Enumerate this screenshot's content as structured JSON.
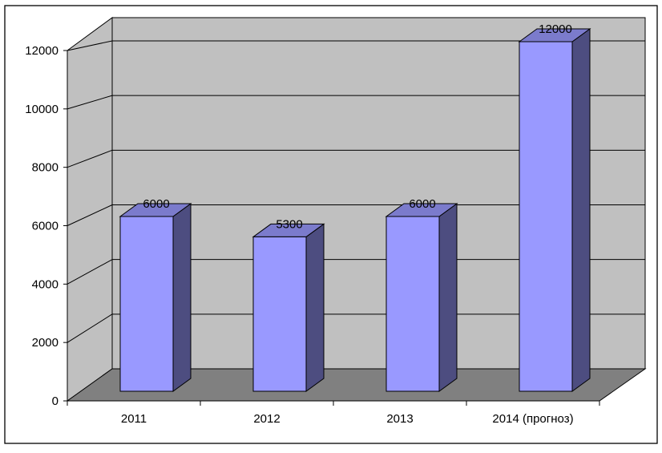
{
  "chart_data": {
    "type": "bar",
    "categories": [
      "2011",
      "2012",
      "2013",
      "2014 (прогноз)"
    ],
    "values": [
      6000,
      5300,
      6000,
      12000
    ],
    "data_labels": [
      "6000",
      "5300",
      "6000",
      "12000"
    ],
    "y_ticks": [
      "0",
      "2000",
      "4000",
      "6000",
      "8000",
      "10000",
      "12000"
    ],
    "ylim": [
      0,
      12000
    ],
    "grid": true,
    "legend": "none",
    "colors": {
      "bar_front": "#9999ff",
      "bar_side": "#4d4d80",
      "bar_top": "#7b7bcc",
      "wall": "#c0c0c0",
      "floor": "#808080"
    }
  }
}
